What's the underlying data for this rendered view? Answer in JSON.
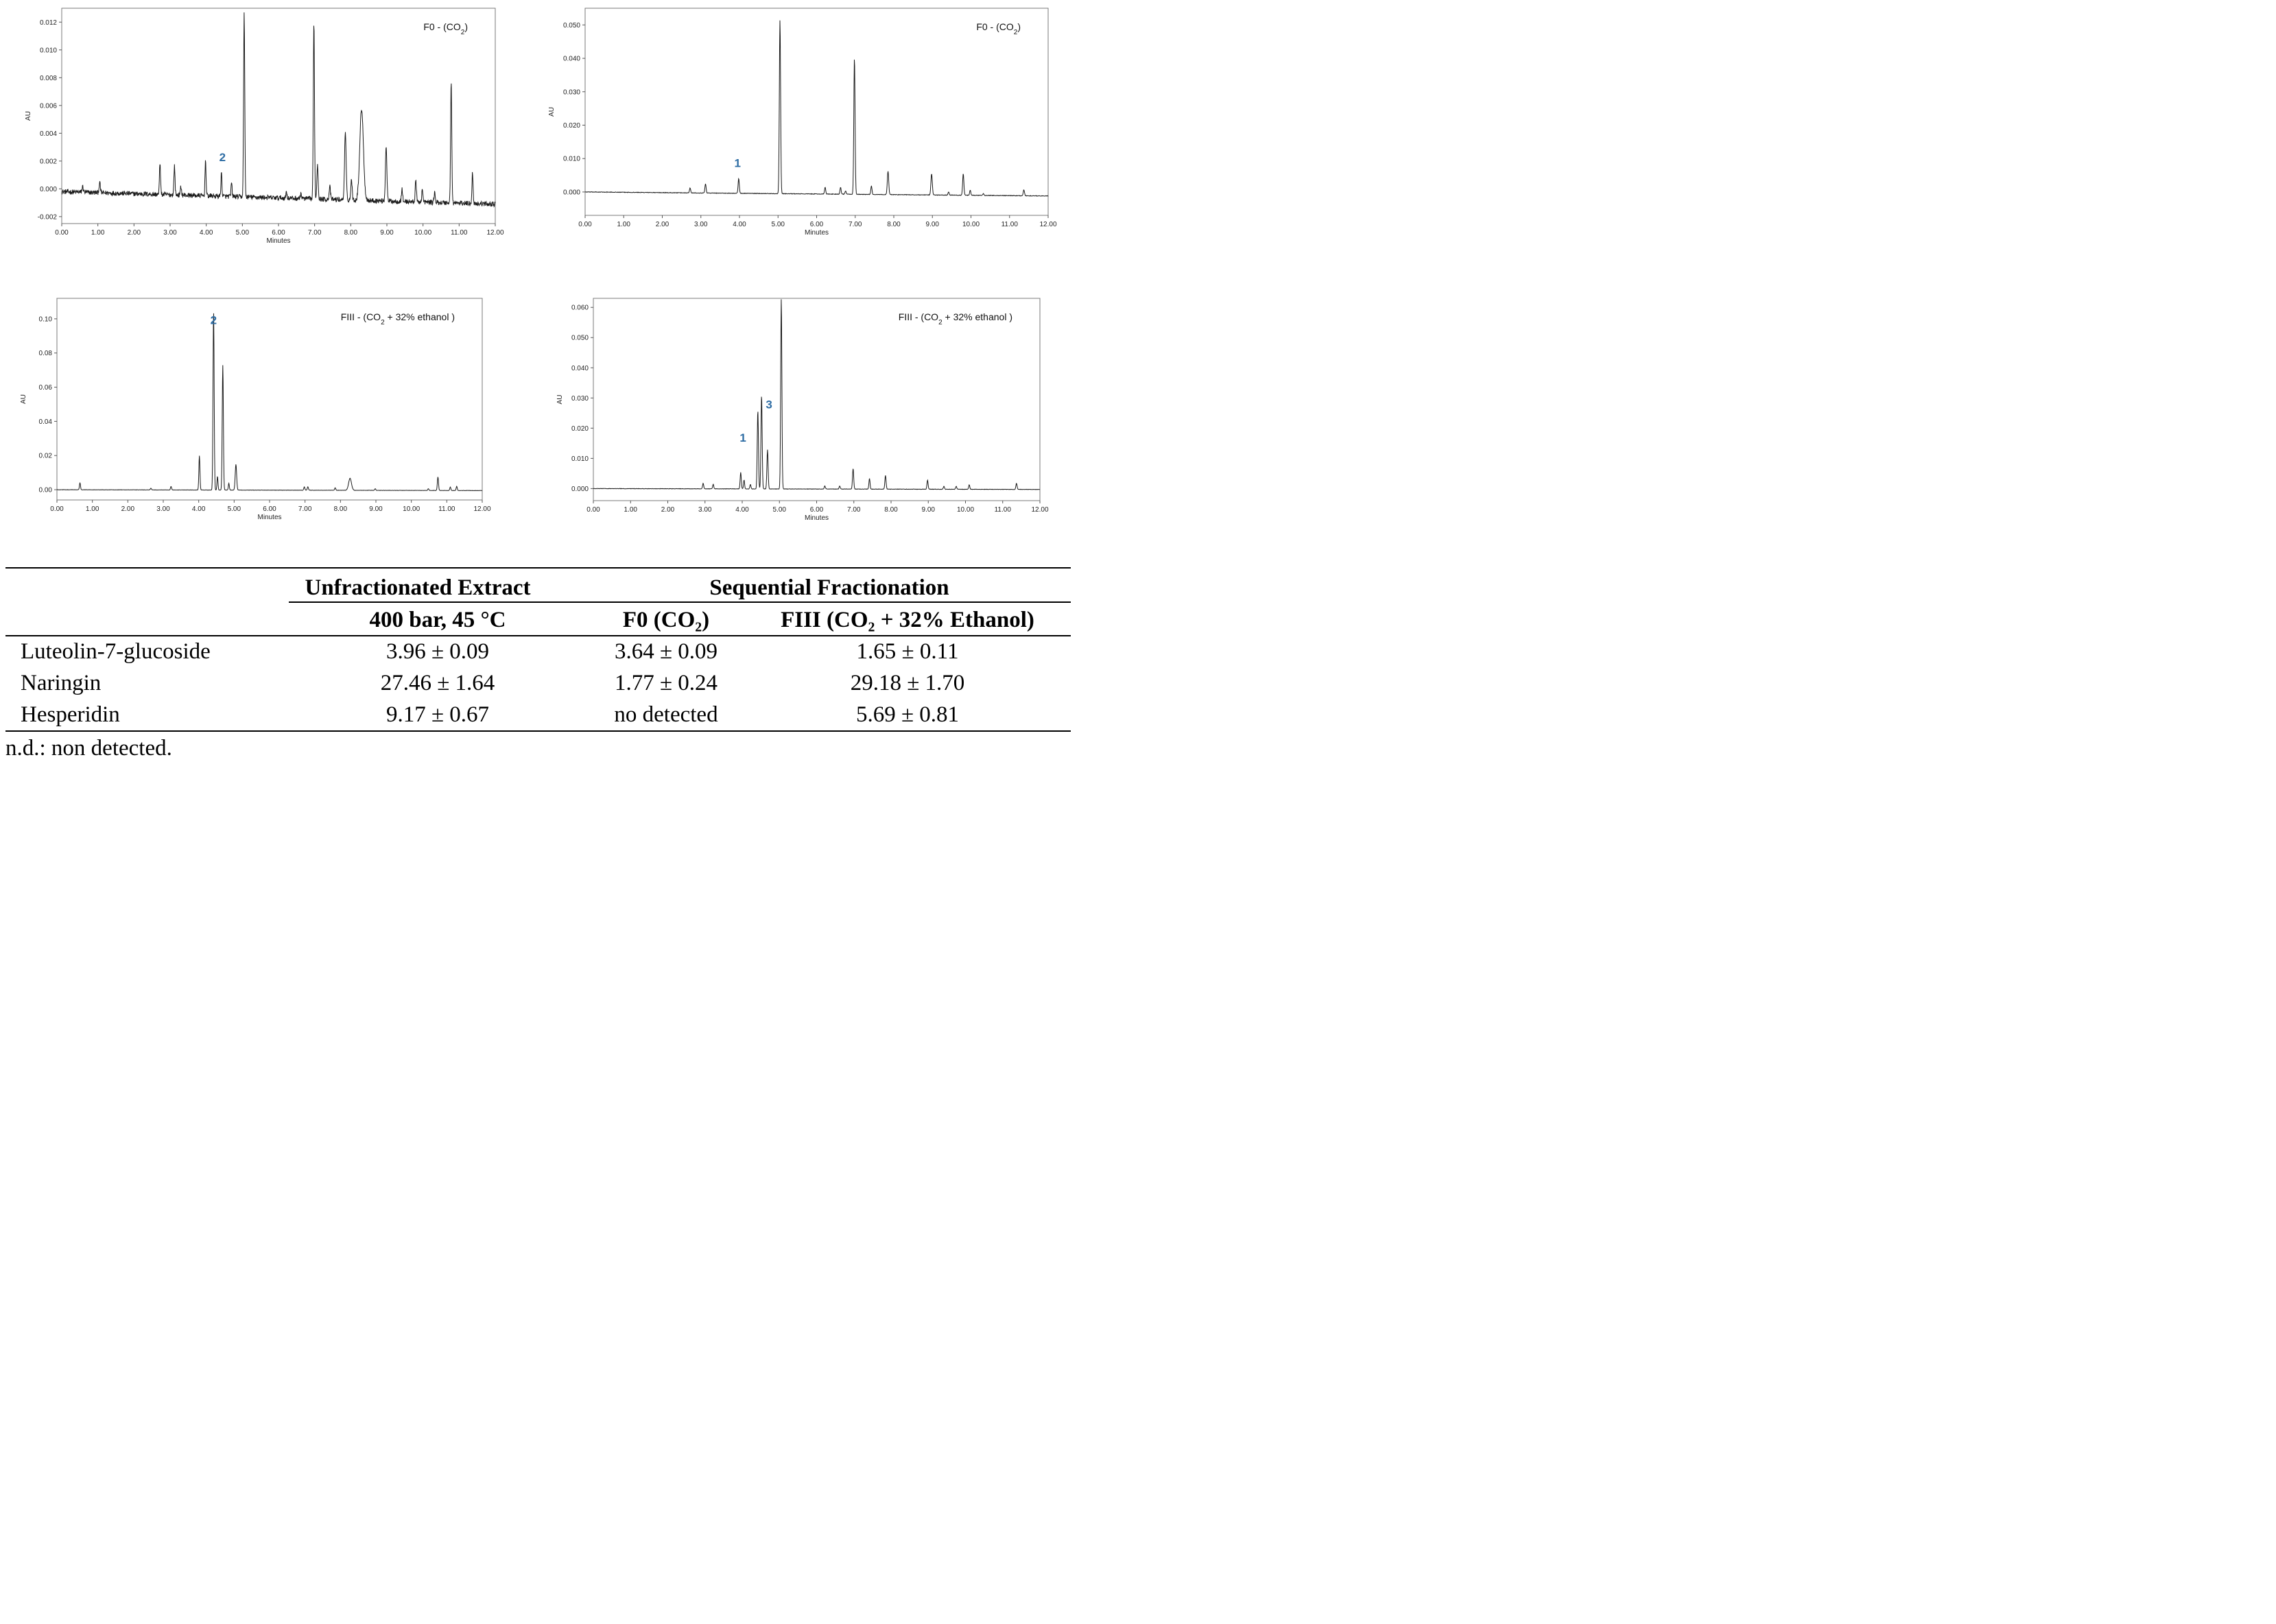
{
  "chart_data": [
    {
      "type": "line",
      "title": "F0 - (CO",
      "title_sub": "2",
      "title_end": ")",
      "xlabel": "Minutes",
      "ylabel": "AU",
      "xlim": [
        0,
        12
      ],
      "ylim": [
        -0.0025,
        0.013
      ],
      "xticks": [
        0,
        1,
        2,
        3,
        4,
        5,
        6,
        7,
        8,
        9,
        10,
        11,
        12
      ],
      "xtick_labels": [
        "0.00",
        "1.00",
        "2.00",
        "3.00",
        "4.00",
        "5.00",
        "6.00",
        "7.00",
        "8.00",
        "9.00",
        "10.00",
        "11.00",
        "12.00"
      ],
      "yticks": [
        -0.002,
        0,
        0.002,
        0.004,
        0.006,
        0.008,
        0.01,
        0.012
      ],
      "ytick_labels": [
        "-0.002",
        "0.000",
        "0.002",
        "0.004",
        "0.006",
        "0.008",
        "0.010",
        "0.012"
      ],
      "baseline": {
        "start": -0.0002,
        "end": -0.0011,
        "noise": 0.00018
      },
      "peaks": [
        {
          "x": 0.58,
          "h": 0.0004,
          "w": 0.018
        },
        {
          "x": 1.05,
          "h": 0.0007,
          "w": 0.018
        },
        {
          "x": 2.72,
          "h": 0.0023,
          "w": 0.015
        },
        {
          "x": 3.12,
          "h": 0.0021,
          "w": 0.015
        },
        {
          "x": 3.3,
          "h": 0.0006,
          "w": 0.015
        },
        {
          "x": 3.98,
          "h": 0.0026,
          "w": 0.014
        },
        {
          "x": 4.42,
          "h": 0.0017,
          "w": 0.014
        },
        {
          "x": 4.7,
          "h": 0.001,
          "w": 0.014
        },
        {
          "x": 5.05,
          "h": 0.0132,
          "w": 0.016
        },
        {
          "x": 6.22,
          "h": 0.0005,
          "w": 0.014
        },
        {
          "x": 6.62,
          "h": 0.0004,
          "w": 0.014
        },
        {
          "x": 6.98,
          "h": 0.0128,
          "w": 0.016
        },
        {
          "x": 7.08,
          "h": 0.0025,
          "w": 0.018
        },
        {
          "x": 7.42,
          "h": 0.0009,
          "w": 0.018
        },
        {
          "x": 7.85,
          "h": 0.0048,
          "w": 0.022
        },
        {
          "x": 8.02,
          "h": 0.0015,
          "w": 0.018
        },
        {
          "x": 8.3,
          "h": 0.0066,
          "w": 0.05
        },
        {
          "x": 8.98,
          "h": 0.004,
          "w": 0.02
        },
        {
          "x": 9.42,
          "h": 0.0009,
          "w": 0.016
        },
        {
          "x": 9.8,
          "h": 0.0016,
          "w": 0.016
        },
        {
          "x": 9.98,
          "h": 0.0009,
          "w": 0.016
        },
        {
          "x": 10.32,
          "h": 0.0007,
          "w": 0.016
        },
        {
          "x": 10.78,
          "h": 0.0088,
          "w": 0.016
        },
        {
          "x": 11.37,
          "h": 0.0022,
          "w": 0.016
        }
      ],
      "annotations": [
        {
          "text": "2",
          "x": 4.45,
          "y": 0.002
        }
      ]
    },
    {
      "type": "line",
      "title": "F0 - (CO",
      "title_sub": "2",
      "title_end": ")",
      "xlabel": "Minutes",
      "ylabel": "AU",
      "xlim": [
        0,
        12
      ],
      "ylim": [
        -0.007,
        0.055
      ],
      "xticks": [
        0,
        1,
        2,
        3,
        4,
        5,
        6,
        7,
        8,
        9,
        10,
        11,
        12
      ],
      "xtick_labels": [
        "0.00",
        "1.00",
        "2.00",
        "3.00",
        "4.00",
        "5.00",
        "6.00",
        "7.00",
        "8.00",
        "9.00",
        "10.00",
        "11.00",
        "12.00"
      ],
      "yticks": [
        0,
        0.01,
        0.02,
        0.03,
        0.04,
        0.05
      ],
      "ytick_labels": [
        "0.000",
        "0.010",
        "0.020",
        "0.030",
        "0.040",
        "0.050"
      ],
      "baseline": {
        "start": 0.0,
        "end": -0.0012,
        "noise": 8e-05
      },
      "peaks": [
        {
          "x": 2.72,
          "h": 0.0015,
          "w": 0.015
        },
        {
          "x": 3.12,
          "h": 0.0028,
          "w": 0.015
        },
        {
          "x": 3.98,
          "h": 0.0045,
          "w": 0.015
        },
        {
          "x": 5.05,
          "h": 0.052,
          "w": 0.016
        },
        {
          "x": 6.22,
          "h": 0.002,
          "w": 0.015
        },
        {
          "x": 6.62,
          "h": 0.002,
          "w": 0.015
        },
        {
          "x": 6.75,
          "h": 0.001,
          "w": 0.015
        },
        {
          "x": 6.98,
          "h": 0.041,
          "w": 0.016
        },
        {
          "x": 7.42,
          "h": 0.0025,
          "w": 0.015
        },
        {
          "x": 7.85,
          "h": 0.007,
          "w": 0.018
        },
        {
          "x": 8.98,
          "h": 0.0063,
          "w": 0.018
        },
        {
          "x": 9.42,
          "h": 0.001,
          "w": 0.015
        },
        {
          "x": 9.8,
          "h": 0.0064,
          "w": 0.016
        },
        {
          "x": 9.98,
          "h": 0.0015,
          "w": 0.015
        },
        {
          "x": 10.32,
          "h": 0.0005,
          "w": 0.015
        },
        {
          "x": 11.37,
          "h": 0.0018,
          "w": 0.016
        }
      ],
      "annotations": [
        {
          "text": "1",
          "x": 3.95,
          "y": 0.0075
        }
      ]
    },
    {
      "type": "line",
      "title": "FIII - (CO",
      "title_sub": "2",
      "title_end": " + 32% ethanol )",
      "xlabel": "Minutes",
      "ylabel": "AU",
      "xlim": [
        0,
        12
      ],
      "ylim": [
        -0.006,
        0.112
      ],
      "xticks": [
        0,
        1,
        2,
        3,
        4,
        5,
        6,
        7,
        8,
        9,
        10,
        11,
        12
      ],
      "xtick_labels": [
        "0.00",
        "1.00",
        "2.00",
        "3.00",
        "4.00",
        "5.00",
        "6.00",
        "7.00",
        "8.00",
        "9.00",
        "10.00",
        "11.00",
        "12.00"
      ],
      "yticks": [
        0,
        0.02,
        0.04,
        0.06,
        0.08,
        0.1
      ],
      "ytick_labels": [
        "0.00",
        "0.02",
        "0.04",
        "0.06",
        "0.08",
        "0.10"
      ],
      "baseline": {
        "start": 0.0,
        "end": -0.0005,
        "noise": 8e-05
      },
      "peaks": [
        {
          "x": 0.65,
          "h": 0.004,
          "w": 0.015
        },
        {
          "x": 2.65,
          "h": 0.001,
          "w": 0.015
        },
        {
          "x": 3.22,
          "h": 0.002,
          "w": 0.015
        },
        {
          "x": 4.02,
          "h": 0.02,
          "w": 0.015
        },
        {
          "x": 4.42,
          "h": 0.105,
          "w": 0.016
        },
        {
          "x": 4.53,
          "h": 0.008,
          "w": 0.014
        },
        {
          "x": 4.68,
          "h": 0.073,
          "w": 0.016
        },
        {
          "x": 4.85,
          "h": 0.004,
          "w": 0.014
        },
        {
          "x": 5.05,
          "h": 0.015,
          "w": 0.02
        },
        {
          "x": 6.98,
          "h": 0.002,
          "w": 0.015
        },
        {
          "x": 7.08,
          "h": 0.002,
          "w": 0.015
        },
        {
          "x": 7.85,
          "h": 0.0015,
          "w": 0.015
        },
        {
          "x": 8.27,
          "h": 0.007,
          "w": 0.04
        },
        {
          "x": 8.98,
          "h": 0.001,
          "w": 0.015
        },
        {
          "x": 10.48,
          "h": 0.001,
          "w": 0.015
        },
        {
          "x": 10.75,
          "h": 0.008,
          "w": 0.016
        },
        {
          "x": 11.1,
          "h": 0.002,
          "w": 0.015
        },
        {
          "x": 11.28,
          "h": 0.0025,
          "w": 0.015
        }
      ],
      "annotations": [
        {
          "text": "2",
          "x": 4.42,
          "y": 0.097
        }
      ]
    },
    {
      "type": "line",
      "title": "FIII - (CO",
      "title_sub": "2",
      "title_end": " + 32% ethanol )",
      "xlabel": "Minutes",
      "ylabel": "AU",
      "xlim": [
        0,
        12
      ],
      "ylim": [
        -0.004,
        0.063
      ],
      "xticks": [
        0,
        1,
        2,
        3,
        4,
        5,
        6,
        7,
        8,
        9,
        10,
        11,
        12
      ],
      "xtick_labels": [
        "0.00",
        "1.00",
        "2.00",
        "3.00",
        "4.00",
        "5.00",
        "6.00",
        "7.00",
        "8.00",
        "9.00",
        "10.00",
        "11.00",
        "12.00"
      ],
      "yticks": [
        0,
        0.01,
        0.02,
        0.03,
        0.04,
        0.05,
        0.06
      ],
      "ytick_labels": [
        "0.000",
        "0.010",
        "0.020",
        "0.030",
        "0.040",
        "0.050",
        "0.060"
      ],
      "baseline": {
        "start": 0.0,
        "end": -0.0003,
        "noise": 6e-05
      },
      "peaks": [
        {
          "x": 2.95,
          "h": 0.0018,
          "w": 0.015
        },
        {
          "x": 3.22,
          "h": 0.0015,
          "w": 0.015
        },
        {
          "x": 3.96,
          "h": 0.0055,
          "w": 0.015
        },
        {
          "x": 4.05,
          "h": 0.003,
          "w": 0.014
        },
        {
          "x": 4.22,
          "h": 0.0015,
          "w": 0.014
        },
        {
          "x": 4.42,
          "h": 0.026,
          "w": 0.016
        },
        {
          "x": 4.52,
          "h": 0.031,
          "w": 0.016
        },
        {
          "x": 4.68,
          "h": 0.013,
          "w": 0.016
        },
        {
          "x": 5.05,
          "h": 0.063,
          "w": 0.016
        },
        {
          "x": 6.22,
          "h": 0.001,
          "w": 0.015
        },
        {
          "x": 6.62,
          "h": 0.001,
          "w": 0.015
        },
        {
          "x": 6.98,
          "h": 0.0068,
          "w": 0.016
        },
        {
          "x": 7.42,
          "h": 0.0035,
          "w": 0.015
        },
        {
          "x": 7.85,
          "h": 0.0045,
          "w": 0.016
        },
        {
          "x": 8.98,
          "h": 0.003,
          "w": 0.015
        },
        {
          "x": 9.42,
          "h": 0.001,
          "w": 0.015
        },
        {
          "x": 9.75,
          "h": 0.001,
          "w": 0.015
        },
        {
          "x": 10.1,
          "h": 0.0015,
          "w": 0.015
        },
        {
          "x": 11.37,
          "h": 0.002,
          "w": 0.016
        }
      ],
      "annotations": [
        {
          "text": "1",
          "x": 4.02,
          "y": 0.0155
        },
        {
          "text": "3",
          "x": 4.72,
          "y": 0.0265
        }
      ]
    }
  ],
  "table": {
    "group_headers": [
      "Unfractionated Extract",
      "Sequential Fractionation"
    ],
    "sub_headers": [
      "400 bar, 45 °C",
      "F0 (CO₂)",
      "FIII (CO₂ + 32% Ethanol)"
    ],
    "rows": [
      {
        "label": "Luteolin-7-glucoside",
        "values": [
          "3.96 ± 0.09",
          "3.64 ± 0.09",
          "1.65 ± 0.11"
        ]
      },
      {
        "label": "Naringin",
        "values": [
          "27.46 ± 1.64",
          "1.77 ± 0.24",
          "29.18 ± 1.70"
        ]
      },
      {
        "label": "Hesperidin",
        "values": [
          "9.17 ± 0.67",
          "no detected",
          "5.69 ± 0.81"
        ]
      }
    ],
    "footnote": "n.d.: non detected."
  }
}
